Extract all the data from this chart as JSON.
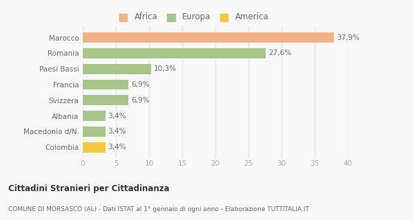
{
  "categories": [
    "Colombia",
    "Macedonia d/N.",
    "Albania",
    "Svizzera",
    "Francia",
    "Paesi Bassi",
    "Romania",
    "Marocco"
  ],
  "values": [
    3.4,
    3.4,
    3.4,
    6.9,
    6.9,
    10.3,
    27.6,
    37.9
  ],
  "colors": [
    "#f5c842",
    "#a8c48a",
    "#a8c48a",
    "#a8c48a",
    "#a8c48a",
    "#a8c48a",
    "#a8c48a",
    "#f0b48a"
  ],
  "labels": [
    "3,4%",
    "3,4%",
    "3,4%",
    "6,9%",
    "6,9%",
    "10,3%",
    "27,6%",
    "37,9%"
  ],
  "legend": [
    {
      "label": "Africa",
      "color": "#f0b48a"
    },
    {
      "label": "Europa",
      "color": "#a8c48a"
    },
    {
      "label": "America",
      "color": "#f5c842"
    }
  ],
  "xlim": [
    0,
    40
  ],
  "xticks": [
    0,
    5,
    10,
    15,
    20,
    25,
    30,
    35,
    40
  ],
  "title": "Cittadini Stranieri per Cittadinanza",
  "subtitle": "COMUNE DI MORSASCO (AL) - Dati ISTAT al 1° gennaio di ogni anno - Elaborazione TUTTITALIA.IT",
  "background_color": "#f9f9f9",
  "grid_color": "#e8e8e8",
  "bar_height": 0.65
}
